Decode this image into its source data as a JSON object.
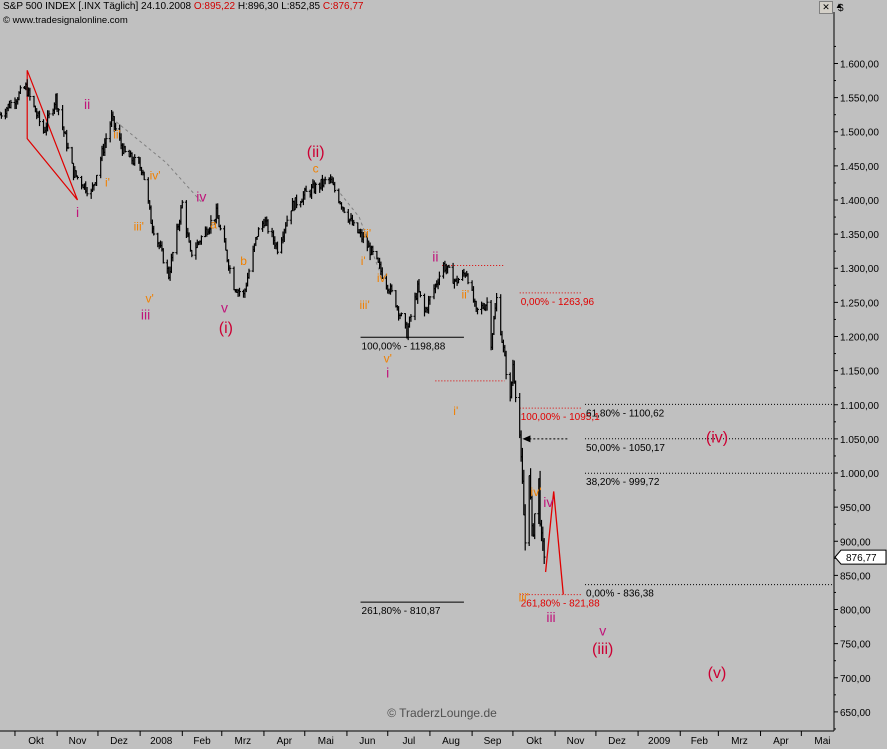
{
  "header": {
    "instrument": "S&P 500 INDEX [.INX Täglich]",
    "date": "24.10.2008",
    "open": "O:895,22",
    "high": "H:896,30",
    "low": "L:852,85",
    "close": "C:876,77",
    "copyright": "© www.tradesignalonline.com"
  },
  "watermark": "© TraderzLounge.de",
  "colors": {
    "background": "#c0c0c0",
    "price": "#000000",
    "wave_magenta": "#c0147a",
    "wave_orange": "#f08000",
    "wave_crimson": "#cc0033",
    "fib_red": "#e00000",
    "trendline": "#808080"
  },
  "chart_data": {
    "type": "candlestick",
    "title": "S&P 500 INDEX [.INX Täglich]",
    "y_axis_side": "right",
    "ylim": [
      622,
      1652
    ],
    "y_ticks": [
      "1.600,00",
      "1.550,00",
      "1.500,00",
      "1.450,00",
      "1.400,00",
      "1.350,00",
      "1.300,00",
      "1.250,00",
      "1.200,00",
      "1.150,00",
      "1.100,00",
      "1.050,00",
      "1.000,00",
      "950,00",
      "900,00",
      "850,00",
      "800,00",
      "750,00",
      "700,00",
      "650,00"
    ],
    "y_tick_values": [
      1600,
      1550,
      1500,
      1450,
      1400,
      1350,
      1300,
      1250,
      1200,
      1150,
      1100,
      1050,
      1000,
      950,
      900,
      850,
      800,
      750,
      700,
      650
    ],
    "last_price_label": "876,77",
    "last_price": 876.77,
    "x_ticks": [
      "Okt",
      "Nov",
      "Dez",
      "2008",
      "Feb",
      "Mrz",
      "Apr",
      "Mai",
      "Jun",
      "Jul",
      "Aug",
      "Sep",
      "Okt",
      "Nov",
      "Dez",
      "2009",
      "Feb",
      "Mrz",
      "Apr",
      "Mai"
    ],
    "x_tick_dates": [
      "2007-10-01",
      "2007-11-01",
      "2007-12-01",
      "2008-01-01",
      "2008-02-01",
      "2008-03-01",
      "2008-04-01",
      "2008-05-01",
      "2008-06-01",
      "2008-07-01",
      "2008-08-01",
      "2008-09-01",
      "2008-10-01",
      "2008-11-01",
      "2008-12-01",
      "2009-01-01",
      "2009-02-01",
      "2009-03-01",
      "2009-04-01",
      "2009-05-01"
    ],
    "x_range": [
      "2007-09-20",
      "2009-05-25"
    ],
    "price_path": {
      "date_range": [
        "2007-09-20",
        "2008-10-24"
      ],
      "anchors": [
        [
          "2007-09-20",
          1525
        ],
        [
          "2007-10-09",
          1565
        ],
        [
          "2007-10-22",
          1500
        ],
        [
          "2007-10-31",
          1550
        ],
        [
          "2007-11-13",
          1440
        ],
        [
          "2007-11-26",
          1410
        ],
        [
          "2007-12-11",
          1520
        ],
        [
          "2007-12-20",
          1470
        ],
        [
          "2008-01-03",
          1445
        ],
        [
          "2008-01-09",
          1370
        ],
        [
          "2008-01-22",
          1290
        ],
        [
          "2008-02-01",
          1395
        ],
        [
          "2008-02-07",
          1320
        ],
        [
          "2008-02-26",
          1380
        ],
        [
          "2008-03-10",
          1275
        ],
        [
          "2008-03-17",
          1260
        ],
        [
          "2008-03-27",
          1350
        ],
        [
          "2008-04-01",
          1370
        ],
        [
          "2008-04-11",
          1330
        ],
        [
          "2008-04-21",
          1390
        ],
        [
          "2008-05-02",
          1410
        ],
        [
          "2008-05-19",
          1430
        ],
        [
          "2008-06-06",
          1360
        ],
        [
          "2008-06-12",
          1345
        ],
        [
          "2008-06-20",
          1320
        ],
        [
          "2008-06-30",
          1280
        ],
        [
          "2008-07-07",
          1250
        ],
        [
          "2008-07-15",
          1205
        ],
        [
          "2008-07-23",
          1270
        ],
        [
          "2008-07-28",
          1235
        ],
        [
          "2008-08-11",
          1305
        ],
        [
          "2008-08-20",
          1280
        ],
        [
          "2008-08-28",
          1295
        ],
        [
          "2008-09-04",
          1235
        ],
        [
          "2008-09-12",
          1250
        ],
        [
          "2008-09-15",
          1192
        ],
        [
          "2008-09-19",
          1255
        ],
        [
          "2008-09-29",
          1106
        ],
        [
          "2008-10-01",
          1160
        ],
        [
          "2008-10-06",
          1056
        ],
        [
          "2008-10-10",
          899
        ],
        [
          "2008-10-13",
          1003
        ],
        [
          "2008-10-15",
          907
        ],
        [
          "2008-10-17",
          940
        ],
        [
          "2008-10-20",
          985
        ],
        [
          "2008-10-22",
          896
        ],
        [
          "2008-10-24",
          876.77
        ]
      ]
    },
    "fib_levels": [
      {
        "label": "0,00% - 1263,96",
        "value": 1263.96,
        "style": "red-dotted",
        "from": "2008-10-06",
        "to": "2008-11-20"
      },
      {
        "label": "100,00% - 1095,1",
        "value": 1095.1,
        "style": "red-dotted",
        "from": "2008-10-06",
        "to": "2008-11-20"
      },
      {
        "label": "261,80% - 821,88",
        "value": 821.88,
        "style": "red-dotted",
        "from": "2008-10-06",
        "to": "2008-11-20"
      },
      {
        "label": "100,00% - 1198,88",
        "value": 1198.88,
        "style": "black-solid",
        "from": "2008-06-11",
        "to": "2008-08-26"
      },
      {
        "label": "261,80% - 810,87",
        "value": 810.87,
        "style": "black-solid",
        "from": "2008-06-11",
        "to": "2008-08-26"
      },
      {
        "label": "61,80% - 1100,62",
        "value": 1100.62,
        "style": "black-dotted",
        "from": "2008-11-23",
        "to": "2009-05-25"
      },
      {
        "label": "50,00% - 1050,17",
        "value": 1050.17,
        "style": "black-dotted",
        "from": "2008-11-23",
        "to": "2009-05-25"
      },
      {
        "label": "38,20% - 999,72",
        "value": 999.72,
        "style": "black-dotted",
        "from": "2008-11-23",
        "to": "2009-05-25"
      },
      {
        "label": "0,00% - 836,38",
        "value": 836.38,
        "style": "black-dotted",
        "from": "2008-11-23",
        "to": "2009-05-25"
      }
    ],
    "short_dotted_lines": [
      {
        "value": 1304,
        "from": "2008-08-10",
        "to": "2008-09-25"
      },
      {
        "value": 1135,
        "from": "2008-08-05",
        "to": "2008-09-25"
      }
    ],
    "annotations": [
      {
        "text": "ii",
        "date": "2007-11-23",
        "value": 1533,
        "color": "magenta"
      },
      {
        "text": "i",
        "date": "2007-11-16",
        "value": 1375,
        "color": "magenta"
      },
      {
        "text": "ii'",
        "date": "2007-12-15",
        "value": 1490,
        "color": "orange"
      },
      {
        "text": "i'",
        "date": "2007-12-08",
        "value": 1420,
        "color": "orange"
      },
      {
        "text": "iv'",
        "date": "2008-01-12",
        "value": 1430,
        "color": "orange"
      },
      {
        "text": "iv",
        "date": "2008-02-15",
        "value": 1398,
        "color": "magenta"
      },
      {
        "text": "iii'",
        "date": "2007-12-31",
        "value": 1355,
        "color": "orange"
      },
      {
        "text": "v'",
        "date": "2008-01-08",
        "value": 1250,
        "color": "orange"
      },
      {
        "text": "iii",
        "date": "2008-01-05",
        "value": 1225,
        "color": "magenta"
      },
      {
        "text": "a",
        "date": "2008-02-24",
        "value": 1358,
        "color": "orange"
      },
      {
        "text": "b",
        "date": "2008-03-17",
        "value": 1305,
        "color": "orange"
      },
      {
        "text": "v",
        "date": "2008-03-03",
        "value": 1235,
        "color": "magenta"
      },
      {
        "text": "(i)",
        "date": "2008-03-04",
        "value": 1205,
        "color": "crimson"
      },
      {
        "text": "(ii)",
        "date": "2008-05-09",
        "value": 1463,
        "color": "crimson"
      },
      {
        "text": "c",
        "date": "2008-05-09",
        "value": 1440,
        "color": "orange"
      },
      {
        "text": "ii'",
        "date": "2008-06-16",
        "value": 1345,
        "color": "orange"
      },
      {
        "text": "i'",
        "date": "2008-06-13",
        "value": 1305,
        "color": "orange"
      },
      {
        "text": "iv'",
        "date": "2008-06-27",
        "value": 1280,
        "color": "orange"
      },
      {
        "text": "iii'",
        "date": "2008-06-14",
        "value": 1240,
        "color": "orange"
      },
      {
        "text": "v'",
        "date": "2008-07-01",
        "value": 1162,
        "color": "orange"
      },
      {
        "text": "i",
        "date": "2008-07-01",
        "value": 1140,
        "color": "magenta"
      },
      {
        "text": "ii",
        "date": "2008-08-05",
        "value": 1310,
        "color": "magenta"
      },
      {
        "text": "ii'",
        "date": "2008-08-27",
        "value": 1256,
        "color": "orange"
      },
      {
        "text": "i'",
        "date": "2008-08-20",
        "value": 1085,
        "color": "orange"
      },
      {
        "text": "iv'",
        "date": "2008-10-18",
        "value": 966,
        "color": "orange"
      },
      {
        "text": "iv",
        "date": "2008-10-27",
        "value": 950,
        "color": "magenta"
      },
      {
        "text": "iii'",
        "date": "2008-10-09",
        "value": 812,
        "color": "orange"
      },
      {
        "text": "iii",
        "date": "2008-10-29",
        "value": 782,
        "color": "magenta"
      },
      {
        "text": "v",
        "date": "2008-12-06",
        "value": 762,
        "color": "magenta"
      },
      {
        "text": "(iii)",
        "date": "2008-12-06",
        "value": 735,
        "color": "crimson"
      },
      {
        "text": "(iv)",
        "date": "2009-02-28",
        "value": 1045,
        "color": "crimson"
      },
      {
        "text": "(v)",
        "date": "2009-02-28",
        "value": 700,
        "color": "crimson"
      }
    ],
    "projection_path": [
      [
        "2008-10-25",
        855
      ],
      [
        "2008-10-31",
        973
      ],
      [
        "2008-11-07",
        822
      ]
    ],
    "red_triangle": [
      [
        "2007-10-10",
        1590
      ],
      [
        "2007-11-16",
        1400
      ],
      [
        "2007-10-10",
        1490
      ]
    ],
    "dashed_trendlines": [
      [
        [
          "2007-12-11",
          1520
        ],
        [
          "2008-01-20",
          1455
        ],
        [
          "2008-02-16",
          1395
        ]
      ],
      [
        [
          "2008-05-19",
          1430
        ],
        [
          "2008-06-10",
          1375
        ],
        [
          "2008-06-27",
          1285
        ]
      ]
    ],
    "arrow": {
      "from_date": "2008-11-10",
      "to_date": "2008-10-08",
      "value": 1050
    }
  }
}
